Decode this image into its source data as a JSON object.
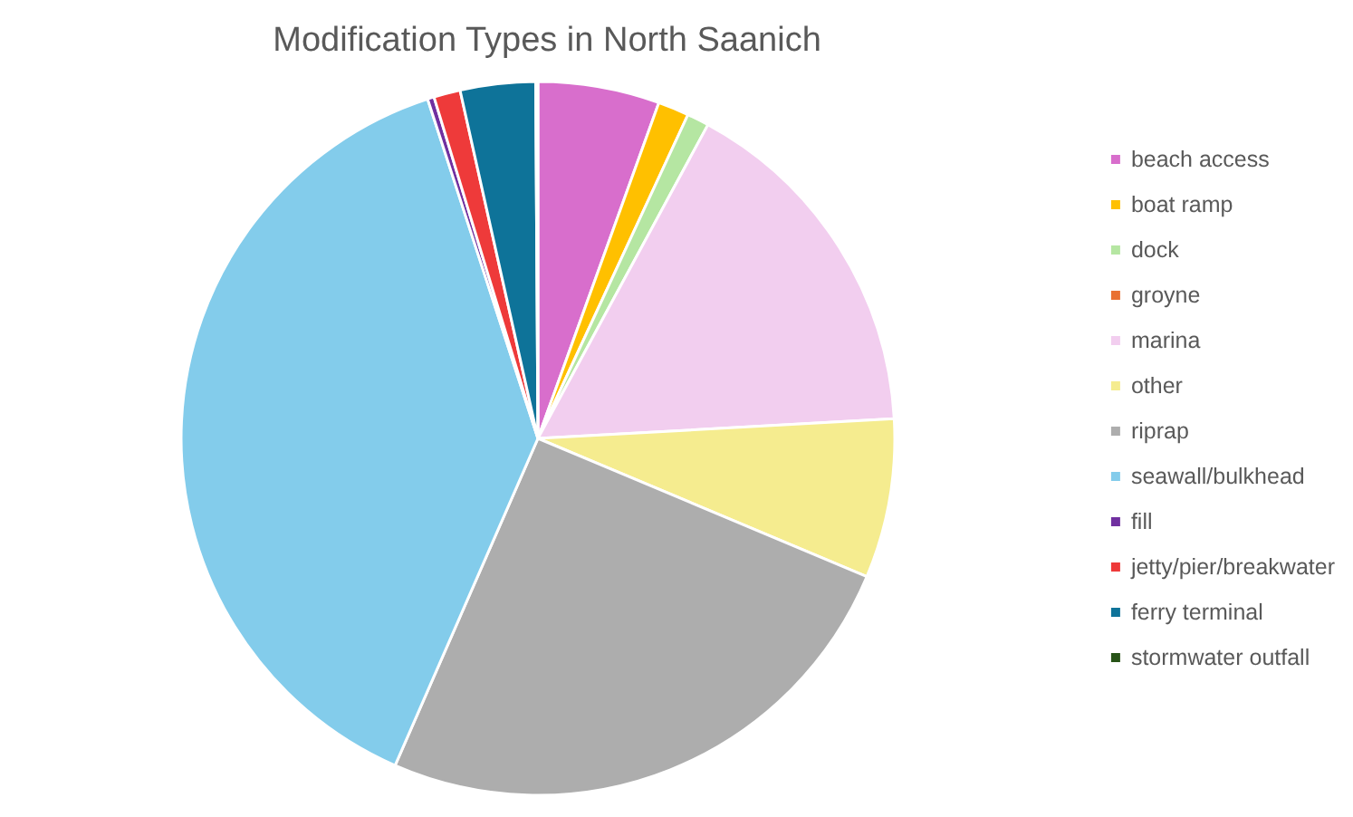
{
  "chart_data": {
    "type": "pie",
    "title": "Modification Types in North Saanich",
    "categories": [
      "beach access",
      "boat ramp",
      "dock",
      "groyne",
      "marina",
      "other",
      "riprap",
      "seawall/bulkhead",
      "fill",
      "jetty/pier/breakwater",
      "ferry terminal",
      "stormwater outfall"
    ],
    "values": [
      5.5,
      1.4,
      1.0,
      null,
      16.2,
      7.2,
      25.2,
      38.4,
      0.3,
      1.2,
      3.4,
      0.1
    ],
    "colors": [
      "#d86ecc",
      "#ffc000",
      "#b5e6a2",
      "#e97132",
      "#f2ceef",
      "#f5ec8f",
      "#adadad",
      "#83cceb",
      "#7030a0",
      "#ee3a3a",
      "#0e7399",
      "#275317"
    ],
    "legend": "right"
  }
}
